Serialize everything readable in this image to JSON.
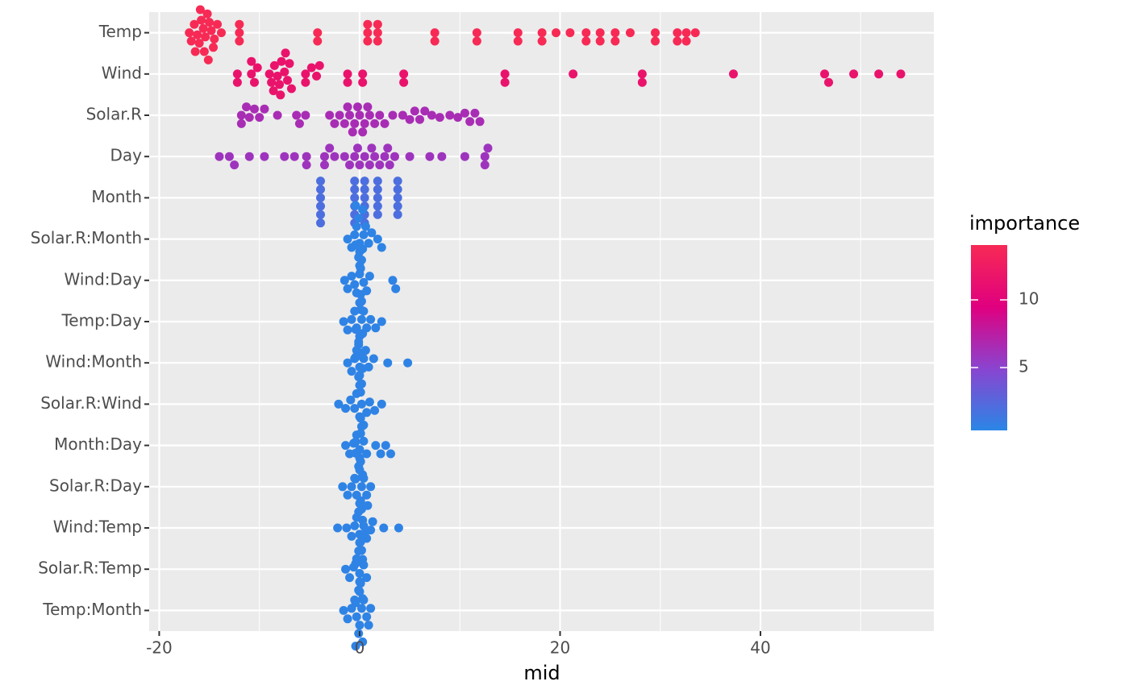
{
  "chart_data": {
    "type": "beeswarm",
    "xlabel": "mid",
    "xlim": [
      -21,
      57.3
    ],
    "xticks": [
      -20,
      0,
      20,
      40
    ],
    "grid": true,
    "legend": {
      "title": "importance",
      "clim": [
        0.36,
        14.05
      ],
      "ticks": [
        5,
        10
      ],
      "colors": [
        "#2a86e6",
        "#8a44d0",
        "#e0007f",
        "#f72a55"
      ]
    },
    "features": [
      {
        "name": "Temp",
        "importance": 14,
        "values": [
          -17,
          -16.8,
          -16.5,
          -16.2,
          -16,
          -15.8,
          -15.6,
          -15.5,
          -15.4,
          -15.2,
          -15,
          -14.8,
          -14.5,
          -14.2,
          -13.8,
          -16.4,
          -15.9,
          -15.1,
          -14.6,
          -12,
          -12,
          -12,
          -4.2,
          -4.2,
          0.8,
          0.8,
          0.8,
          1.8,
          1.8,
          1.8,
          7.5,
          7.5,
          11.7,
          11.7,
          15.8,
          15.8,
          18.2,
          18.2,
          19.6,
          21,
          22.6,
          22.6,
          24,
          24,
          25.5,
          25.5,
          27,
          29.5,
          29.5,
          31.7,
          31.7,
          32.6,
          32.6,
          33.5
        ]
      },
      {
        "name": "Wind",
        "importance": 11.5,
        "values": [
          -12.2,
          -12.2,
          -10.8,
          -10.5,
          -10.2,
          -10.8,
          -9,
          -8.8,
          -8.5,
          -8.2,
          -8,
          -7.8,
          -7.5,
          -7.2,
          -7,
          -6.8,
          -8.6,
          -7.9,
          -7.4,
          -5.4,
          -5.4,
          -4.8,
          -4.3,
          -4,
          -1.2,
          -1.2,
          0.3,
          0.3,
          4.4,
          4.4,
          14.5,
          14.5,
          21.3,
          28.2,
          28.2,
          37.3,
          46.4,
          46.8,
          49.3,
          51.8,
          54
        ]
      },
      {
        "name": "Solar.R",
        "importance": 6.5,
        "values": [
          -11.8,
          -11.8,
          -11.3,
          -11,
          -10.5,
          -10,
          -9.5,
          -8.2,
          -6.3,
          -6,
          -5.4,
          -3,
          -2.5,
          -2,
          -1.5,
          -1,
          -0.5,
          0,
          0.5,
          1,
          1.5,
          2,
          -1.2,
          -0.2,
          0.8,
          -0.7,
          0.3,
          2.5,
          3.3,
          4.3,
          5,
          5.5,
          6,
          6.5,
          7.2,
          8,
          9,
          9.8,
          10.5,
          11,
          11.5,
          12
        ]
      },
      {
        "name": "Day",
        "importance": 6,
        "values": [
          -14,
          -13,
          -12.5,
          -11,
          -9.5,
          -7.5,
          -6.5,
          -5.3,
          -5.3,
          -3.5,
          -3.5,
          -3,
          -2.5,
          -1.5,
          -1,
          -0.5,
          0,
          0.5,
          1,
          1.5,
          2,
          2.5,
          3,
          3.5,
          -0.2,
          1.2,
          2.8,
          5,
          7,
          8.2,
          10.5,
          12.5,
          12.5,
          12.8
        ]
      },
      {
        "name": "Month",
        "importance": 2,
        "values": [
          -3.9,
          -3.9,
          -3.9,
          -3.9,
          -3.9,
          -3.9,
          -0.5,
          -0.5,
          -0.5,
          -0.5,
          -0.5,
          -0.5,
          0.5,
          0.5,
          0.5,
          0.5,
          0.5,
          0.5,
          1.8,
          1.8,
          1.8,
          1.8,
          1.8,
          3.8,
          3.8,
          3.8,
          3.8,
          3.8
        ]
      },
      {
        "name": "Solar.R:Month",
        "importance": 0.6,
        "values": [
          -1.2,
          -0.8,
          -0.5,
          -0.3,
          0,
          0,
          0.2,
          0.4,
          0.6,
          0.9,
          1.2,
          -0.1,
          0.1,
          0.3,
          -0.4,
          1.8,
          2.2
        ]
      },
      {
        "name": "Wind:Day",
        "importance": 0.6,
        "values": [
          -1.5,
          -1.2,
          -0.8,
          -0.5,
          -0.3,
          0,
          0,
          0.2,
          0.4,
          0.7,
          1,
          -0.1,
          0.1,
          0.3,
          -0.4,
          3.3,
          3.6
        ]
      },
      {
        "name": "Temp:Day",
        "importance": 0.6,
        "values": [
          -1.6,
          -1.2,
          -0.8,
          -0.5,
          -0.3,
          0,
          0,
          0.2,
          0.4,
          0.7,
          1.1,
          -0.1,
          0.1,
          0.3,
          -0.4,
          1.6,
          2.2
        ]
      },
      {
        "name": "Wind:Month",
        "importance": 0.6,
        "values": [
          -1.2,
          -0.8,
          -0.5,
          -0.3,
          0,
          0,
          0.2,
          0.4,
          0.6,
          0.9,
          -0.1,
          0.1,
          0.3,
          -0.4,
          1.4,
          2.8,
          4.8
        ]
      },
      {
        "name": "Solar.R:Wind",
        "importance": 0.6,
        "values": [
          -2.1,
          -1.4,
          -0.9,
          -0.5,
          -0.3,
          0,
          0,
          0.2,
          0.4,
          0.7,
          1,
          -0.1,
          0.1,
          0.3,
          -0.4,
          1.5,
          2.2
        ]
      },
      {
        "name": "Month:Day",
        "importance": 0.6,
        "values": [
          -1.4,
          -1,
          -0.6,
          -0.3,
          0,
          0,
          0.2,
          0.4,
          0.7,
          -0.1,
          0.1,
          0.3,
          -0.4,
          1.6,
          2.1,
          2.6,
          3.1
        ]
      },
      {
        "name": "Solar.R:Day",
        "importance": 0.6,
        "values": [
          -1.7,
          -1.2,
          -0.8,
          -0.5,
          -0.3,
          0,
          0,
          0.2,
          0.4,
          0.7,
          1.1,
          -0.1,
          0.1,
          0.3,
          -0.4,
          0.8
        ]
      },
      {
        "name": "Wind:Temp",
        "importance": 0.6,
        "values": [
          -2.2,
          -1.3,
          -0.8,
          -0.5,
          -0.3,
          0,
          0,
          0.2,
          0.4,
          0.7,
          1.1,
          -0.1,
          0.1,
          0.3,
          -0.4,
          1.3,
          2.4,
          3.9
        ]
      },
      {
        "name": "Solar.R:Temp",
        "importance": 0.6,
        "values": [
          -1.4,
          -1,
          -0.6,
          -0.3,
          0,
          0,
          0.2,
          0.4,
          0.7,
          -0.1,
          0.1,
          0.3,
          -0.4,
          0.5
        ]
      },
      {
        "name": "Temp:Month",
        "importance": 0.6,
        "values": [
          -1.6,
          -1.2,
          -0.8,
          -0.5,
          -0.3,
          0,
          0,
          0.2,
          0.4,
          0.7,
          1.1,
          -0.1,
          0.1,
          0.3,
          -0.4,
          0.9
        ]
      }
    ]
  }
}
